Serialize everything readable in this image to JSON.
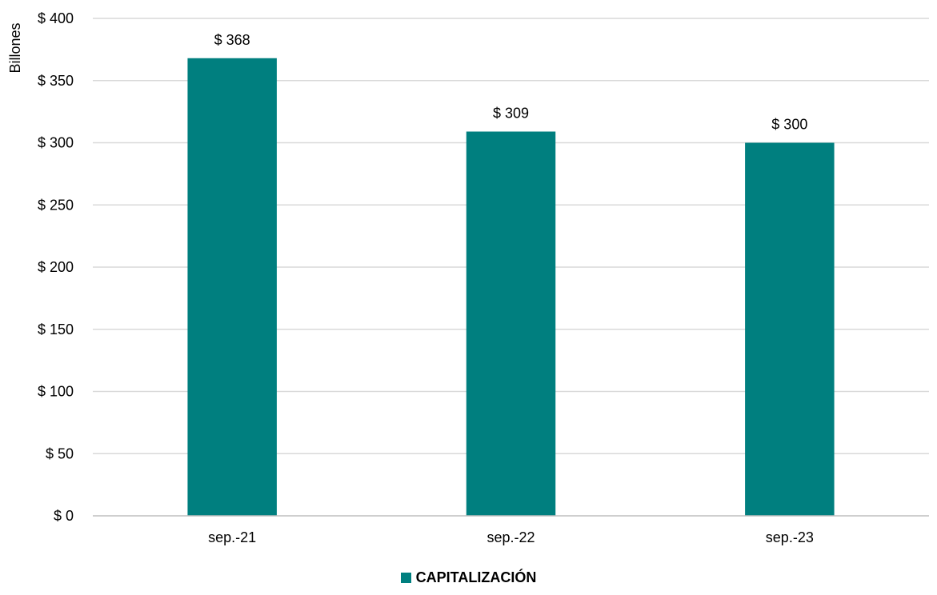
{
  "chart_data": {
    "type": "bar",
    "categories": [
      "sep.-21",
      "sep.-22",
      "sep.-23"
    ],
    "series": [
      {
        "name": "CAPITALIZACIÓN",
        "values": [
          368,
          309,
          300
        ],
        "data_labels": [
          "$ 368",
          "$ 309",
          "$ 300"
        ],
        "color": "#007F7F"
      }
    ],
    "title": "",
    "xlabel": "",
    "ylabel": "Billones",
    "ylim": [
      0,
      400
    ],
    "yticks": [
      0,
      50,
      100,
      150,
      200,
      250,
      300,
      350,
      400
    ],
    "ytick_labels": [
      "$ 0",
      "$ 50",
      "$ 100",
      "$ 150",
      "$ 200",
      "$ 250",
      "$ 300",
      "$ 350",
      "$ 400"
    ],
    "grid": true,
    "legend_position": "bottom-center",
    "gridline_color": "#D9D9D9",
    "axis_line_color": "#BFBFBF"
  }
}
